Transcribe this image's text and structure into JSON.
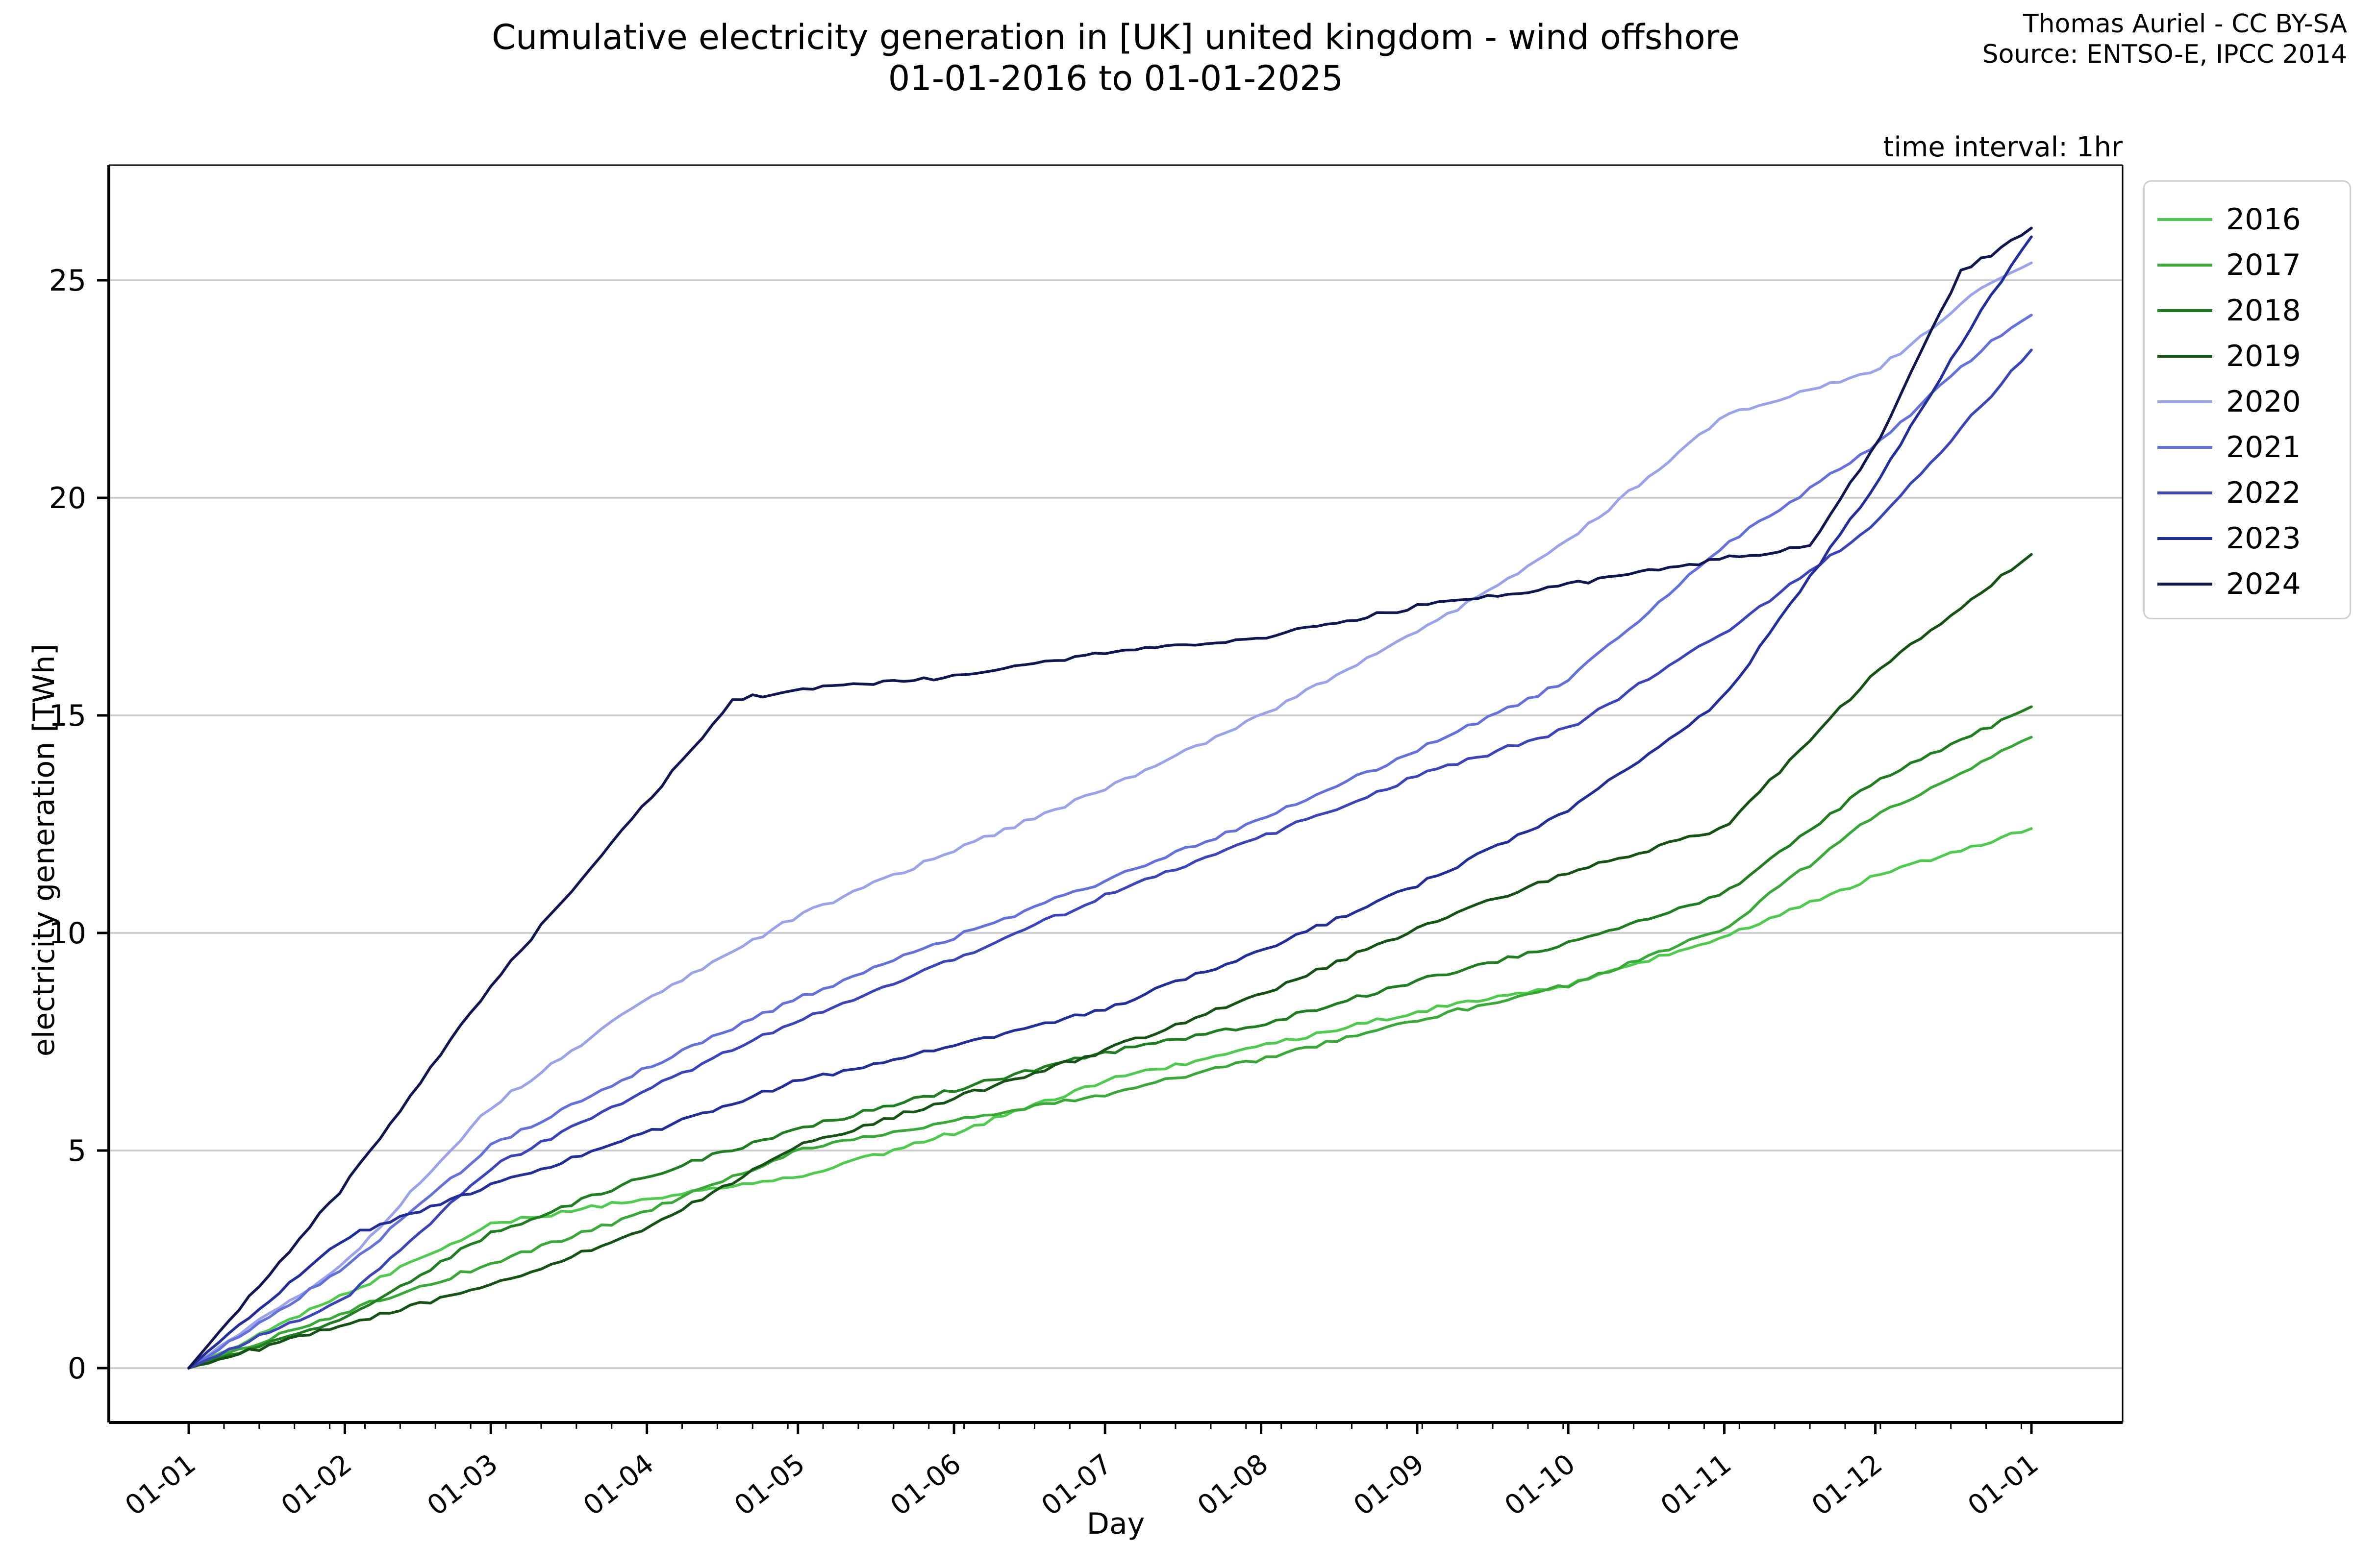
{
  "header": {
    "title_line1": "Cumulative electricity generation in [UK] united kingdom - wind offshore",
    "title_line2": "01-01-2016 to 01-01-2025",
    "attribution_line1": "Thomas Auriel - CC BY-SA",
    "attribution_line2": "Source: ENTSO-E, IPCC 2014",
    "time_interval_note": "time interval: 1hr"
  },
  "chart_data": {
    "type": "line",
    "title": "Cumulative electricity generation in [UK] united kingdom - wind offshore 01-01-2016 to 01-01-2025",
    "xlabel": "Day",
    "ylabel": "electricity generation [TWh]",
    "x_unit": "day-of-year (month-start ticks, values sampled monthly, TWh)",
    "ylim": [
      0,
      27.5
    ],
    "yticks": [
      0,
      5,
      10,
      15,
      20,
      25
    ],
    "grid": "horizontal-only",
    "legend_position": "outside-upper-right",
    "gridline_color": "#c9c9c9",
    "xticks": [
      {
        "day": 0,
        "label": "01-01"
      },
      {
        "day": 31,
        "label": "01-02"
      },
      {
        "day": 60,
        "label": "01-03"
      },
      {
        "day": 91,
        "label": "01-04"
      },
      {
        "day": 121,
        "label": "01-05"
      },
      {
        "day": 152,
        "label": "01-06"
      },
      {
        "day": 182,
        "label": "01-07"
      },
      {
        "day": 213,
        "label": "01-08"
      },
      {
        "day": 244,
        "label": "01-09"
      },
      {
        "day": 274,
        "label": "01-10"
      },
      {
        "day": 305,
        "label": "01-11"
      },
      {
        "day": 335,
        "label": "01-12"
      },
      {
        "day": 366,
        "label": "01-01"
      }
    ],
    "minor_xtick_interval_days": 7,
    "series": [
      {
        "name": "2016",
        "color": "#4fc94f",
        "points": [
          [
            0,
            0
          ],
          [
            31,
            1.7
          ],
          [
            60,
            3.3
          ],
          [
            91,
            3.9
          ],
          [
            121,
            4.4
          ],
          [
            152,
            5.4
          ],
          [
            182,
            6.6
          ],
          [
            213,
            7.4
          ],
          [
            244,
            8.2
          ],
          [
            274,
            8.8
          ],
          [
            305,
            9.9
          ],
          [
            335,
            11.3
          ],
          [
            366,
            12.4
          ]
        ]
      },
      {
        "name": "2017",
        "color": "#39a839",
        "points": [
          [
            0,
            0
          ],
          [
            31,
            1.3
          ],
          [
            60,
            2.4
          ],
          [
            91,
            3.6
          ],
          [
            121,
            5.0
          ],
          [
            152,
            5.7
          ],
          [
            182,
            6.3
          ],
          [
            213,
            7.1
          ],
          [
            244,
            8.0
          ],
          [
            274,
            8.8
          ],
          [
            305,
            10.1
          ],
          [
            335,
            12.7
          ],
          [
            366,
            14.5
          ]
        ]
      },
      {
        "name": "2018",
        "color": "#217d21",
        "points": [
          [
            0,
            0
          ],
          [
            31,
            1.15
          ],
          [
            60,
            3.1
          ],
          [
            91,
            4.4
          ],
          [
            121,
            5.5
          ],
          [
            152,
            6.4
          ],
          [
            182,
            7.25
          ],
          [
            213,
            7.9
          ],
          [
            244,
            8.9
          ],
          [
            274,
            9.75
          ],
          [
            305,
            10.9
          ],
          [
            335,
            13.5
          ],
          [
            366,
            15.2
          ]
        ]
      },
      {
        "name": "2019",
        "color": "#165216",
        "points": [
          [
            0,
            0
          ],
          [
            31,
            1.0
          ],
          [
            60,
            1.9
          ],
          [
            91,
            3.2
          ],
          [
            121,
            5.1
          ],
          [
            152,
            6.2
          ],
          [
            182,
            7.3
          ],
          [
            213,
            8.6
          ],
          [
            244,
            10.1
          ],
          [
            274,
            11.4
          ],
          [
            305,
            12.4
          ],
          [
            335,
            16.0
          ],
          [
            366,
            18.7
          ]
        ]
      },
      {
        "name": "2020",
        "color": "#9aa2e8",
        "points": [
          [
            0,
            0
          ],
          [
            31,
            2.4
          ],
          [
            60,
            6.0
          ],
          [
            91,
            8.5
          ],
          [
            121,
            10.4
          ],
          [
            152,
            11.9
          ],
          [
            182,
            13.3
          ],
          [
            213,
            15.0
          ],
          [
            244,
            16.9
          ],
          [
            274,
            19.0
          ],
          [
            305,
            21.9
          ],
          [
            335,
            22.9
          ],
          [
            357,
            24.9
          ],
          [
            366,
            25.4
          ]
        ]
      },
      {
        "name": "2021",
        "color": "#6570d8",
        "points": [
          [
            0,
            0
          ],
          [
            31,
            2.3
          ],
          [
            60,
            5.1
          ],
          [
            91,
            6.9
          ],
          [
            121,
            8.5
          ],
          [
            152,
            9.9
          ],
          [
            182,
            11.2
          ],
          [
            213,
            12.6
          ],
          [
            244,
            14.2
          ],
          [
            274,
            15.8
          ],
          [
            305,
            18.9
          ],
          [
            335,
            21.2
          ],
          [
            357,
            23.5
          ],
          [
            366,
            24.2
          ]
        ]
      },
      {
        "name": "2022",
        "color": "#3c44b8",
        "points": [
          [
            0,
            0
          ],
          [
            31,
            1.6
          ],
          [
            60,
            4.6
          ],
          [
            91,
            6.4
          ],
          [
            121,
            8.0
          ],
          [
            152,
            9.4
          ],
          [
            182,
            10.85
          ],
          [
            213,
            12.2
          ],
          [
            244,
            13.6
          ],
          [
            274,
            14.7
          ],
          [
            305,
            16.9
          ],
          [
            335,
            19.4
          ],
          [
            366,
            23.4
          ]
        ]
      },
      {
        "name": "2023",
        "color": "#232e96",
        "points": [
          [
            0,
            0
          ],
          [
            31,
            3.0
          ],
          [
            60,
            4.2
          ],
          [
            91,
            5.4
          ],
          [
            121,
            6.6
          ],
          [
            152,
            7.4
          ],
          [
            182,
            8.25
          ],
          [
            213,
            9.6
          ],
          [
            244,
            11.1
          ],
          [
            274,
            12.8
          ],
          [
            305,
            15.4
          ],
          [
            335,
            20.3
          ],
          [
            357,
            24.5
          ],
          [
            366,
            26.0
          ]
        ]
      },
      {
        "name": "2024",
        "color": "#10164f",
        "points": [
          [
            0,
            0
          ],
          [
            31,
            4.2
          ],
          [
            60,
            8.8
          ],
          [
            91,
            13.0
          ],
          [
            108,
            15.35
          ],
          [
            121,
            15.6
          ],
          [
            152,
            15.9
          ],
          [
            182,
            16.45
          ],
          [
            213,
            16.8
          ],
          [
            244,
            17.5
          ],
          [
            274,
            18.0
          ],
          [
            305,
            18.6
          ],
          [
            322,
            18.9
          ],
          [
            335,
            21.2
          ],
          [
            352,
            25.2
          ],
          [
            358,
            25.6
          ],
          [
            366,
            26.2
          ]
        ]
      }
    ]
  }
}
